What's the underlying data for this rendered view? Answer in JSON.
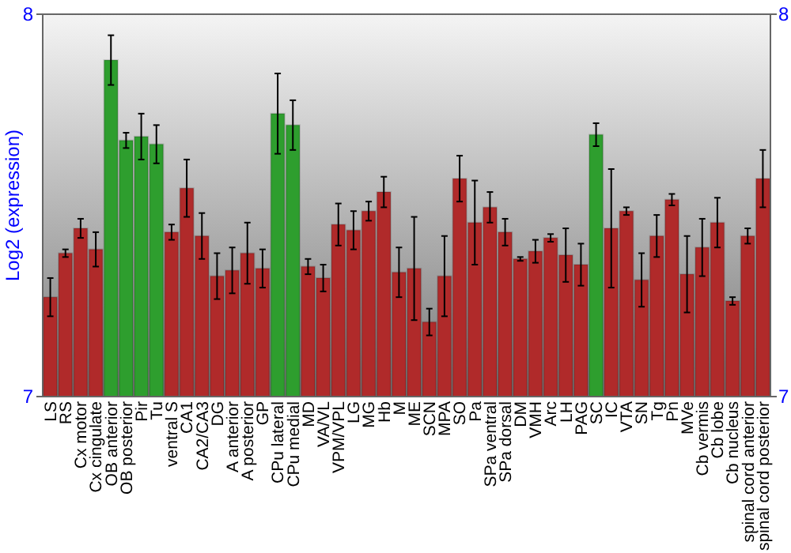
{
  "chart_data": {
    "type": "bar",
    "ylabel": "Log2 (expression)",
    "categories": [
      "LS",
      "RS",
      "Cx motor",
      "Cx cingulate",
      "OB anterior",
      "OB posterior",
      "Pir",
      "Tu",
      "ventral S",
      "CA1",
      "CA2/CA3",
      "DG",
      "A anterior",
      "A posterior",
      "GP",
      "CPu lateral",
      "CPu medial",
      "MD",
      "VA/VL",
      "VPM/VPL",
      "LG",
      "MG",
      "Hb",
      "M",
      "ME",
      "SCN",
      "MPA",
      "SO",
      "Pa",
      "SPa ventral",
      "SPa dorsal",
      "DM",
      "VMH",
      "Arc",
      "LH",
      "PAG",
      "SC",
      "IC",
      "VTA",
      "SN",
      "Tg",
      "Pn",
      "MVe",
      "Cb vermis",
      "Cb lobe",
      "Cb nucleus",
      "spinal cord anterior",
      "spinal cord posterior"
    ],
    "values": [
      7.26,
      7.375,
      7.44,
      7.385,
      7.88,
      7.67,
      7.68,
      7.66,
      7.43,
      7.545,
      7.42,
      7.315,
      7.33,
      7.375,
      7.335,
      7.74,
      7.71,
      7.34,
      7.31,
      7.45,
      7.435,
      7.485,
      7.535,
      7.325,
      7.335,
      7.195,
      7.315,
      7.57,
      7.455,
      7.495,
      7.43,
      7.36,
      7.38,
      7.415,
      7.37,
      7.345,
      7.685,
      7.44,
      7.485,
      7.305,
      7.42,
      7.515,
      7.32,
      7.39,
      7.455,
      7.25,
      7.42,
      7.57
    ],
    "errors": [
      0.05,
      0.01,
      0.025,
      0.045,
      0.065,
      0.02,
      0.06,
      0.05,
      0.02,
      0.075,
      0.06,
      0.06,
      0.06,
      0.08,
      0.05,
      0.105,
      0.065,
      0.02,
      0.035,
      0.055,
      0.05,
      0.025,
      0.04,
      0.065,
      0.135,
      0.035,
      0.105,
      0.06,
      0.11,
      0.04,
      0.035,
      0.005,
      0.03,
      0.01,
      0.07,
      0.055,
      0.03,
      0.155,
      0.01,
      0.07,
      0.055,
      0.015,
      0.1,
      0.075,
      0.065,
      0.01,
      0.02,
      0.075
    ],
    "colors": [
      "#b02a2a",
      "#b02a2a",
      "#b02a2a",
      "#b02a2a",
      "#2e9e2e",
      "#2e9e2e",
      "#2e9e2e",
      "#2e9e2e",
      "#b02a2a",
      "#b02a2a",
      "#b02a2a",
      "#b02a2a",
      "#b02a2a",
      "#b02a2a",
      "#b02a2a",
      "#2e9e2e",
      "#2e9e2e",
      "#b02a2a",
      "#b02a2a",
      "#b02a2a",
      "#b02a2a",
      "#b02a2a",
      "#b02a2a",
      "#b02a2a",
      "#b02a2a",
      "#b02a2a",
      "#b02a2a",
      "#b02a2a",
      "#b02a2a",
      "#b02a2a",
      "#b02a2a",
      "#b02a2a",
      "#b02a2a",
      "#b02a2a",
      "#b02a2a",
      "#b02a2a",
      "#2e9e2e",
      "#b02a2a",
      "#b02a2a",
      "#b02a2a",
      "#b02a2a",
      "#b02a2a",
      "#b02a2a",
      "#b02a2a",
      "#b02a2a",
      "#b02a2a",
      "#b02a2a",
      "#b02a2a"
    ],
    "ylim": [
      7,
      8
    ],
    "yticks": [
      7,
      8
    ],
    "y2lim": [
      7,
      8
    ],
    "y2ticks": [
      7,
      8
    ]
  }
}
